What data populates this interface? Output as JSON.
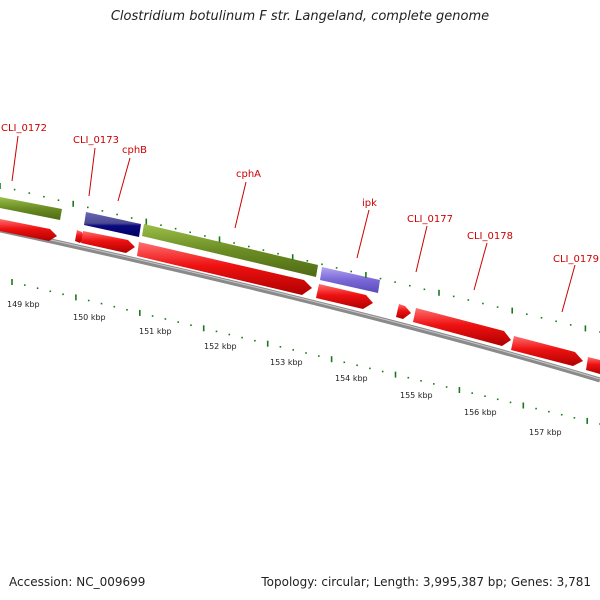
{
  "title": "Clostridium botulinum F str. Langeland, complete genome",
  "accession": "Accession: NC_009699",
  "topology": "Topology: circular; Length: 3,995,387 bp; Genes: 3,781",
  "colors": {
    "cds": "#ee1111",
    "orthologs": "#6b8c23",
    "navy": "#0a0a80",
    "purple": "#7b68d8",
    "backbone": "#8a8a8a",
    "ticks": "#1a7a1a",
    "label": "#cc0000"
  },
  "scale_labels": [
    "149 kbp",
    "150 kbp",
    "151 kbp",
    "152 kbp",
    "153 kbp",
    "154 kbp",
    "155 kbp",
    "156 kbp",
    "157 kbp"
  ],
  "gene_labels": [
    {
      "name": "CLI_0172"
    },
    {
      "name": "CLI_0173"
    },
    {
      "name": "cphB"
    },
    {
      "name": "cphA"
    },
    {
      "name": "ipk"
    },
    {
      "name": "CLI_0177"
    },
    {
      "name": "CLI_0178"
    },
    {
      "name": "CLI_0179"
    }
  ]
}
